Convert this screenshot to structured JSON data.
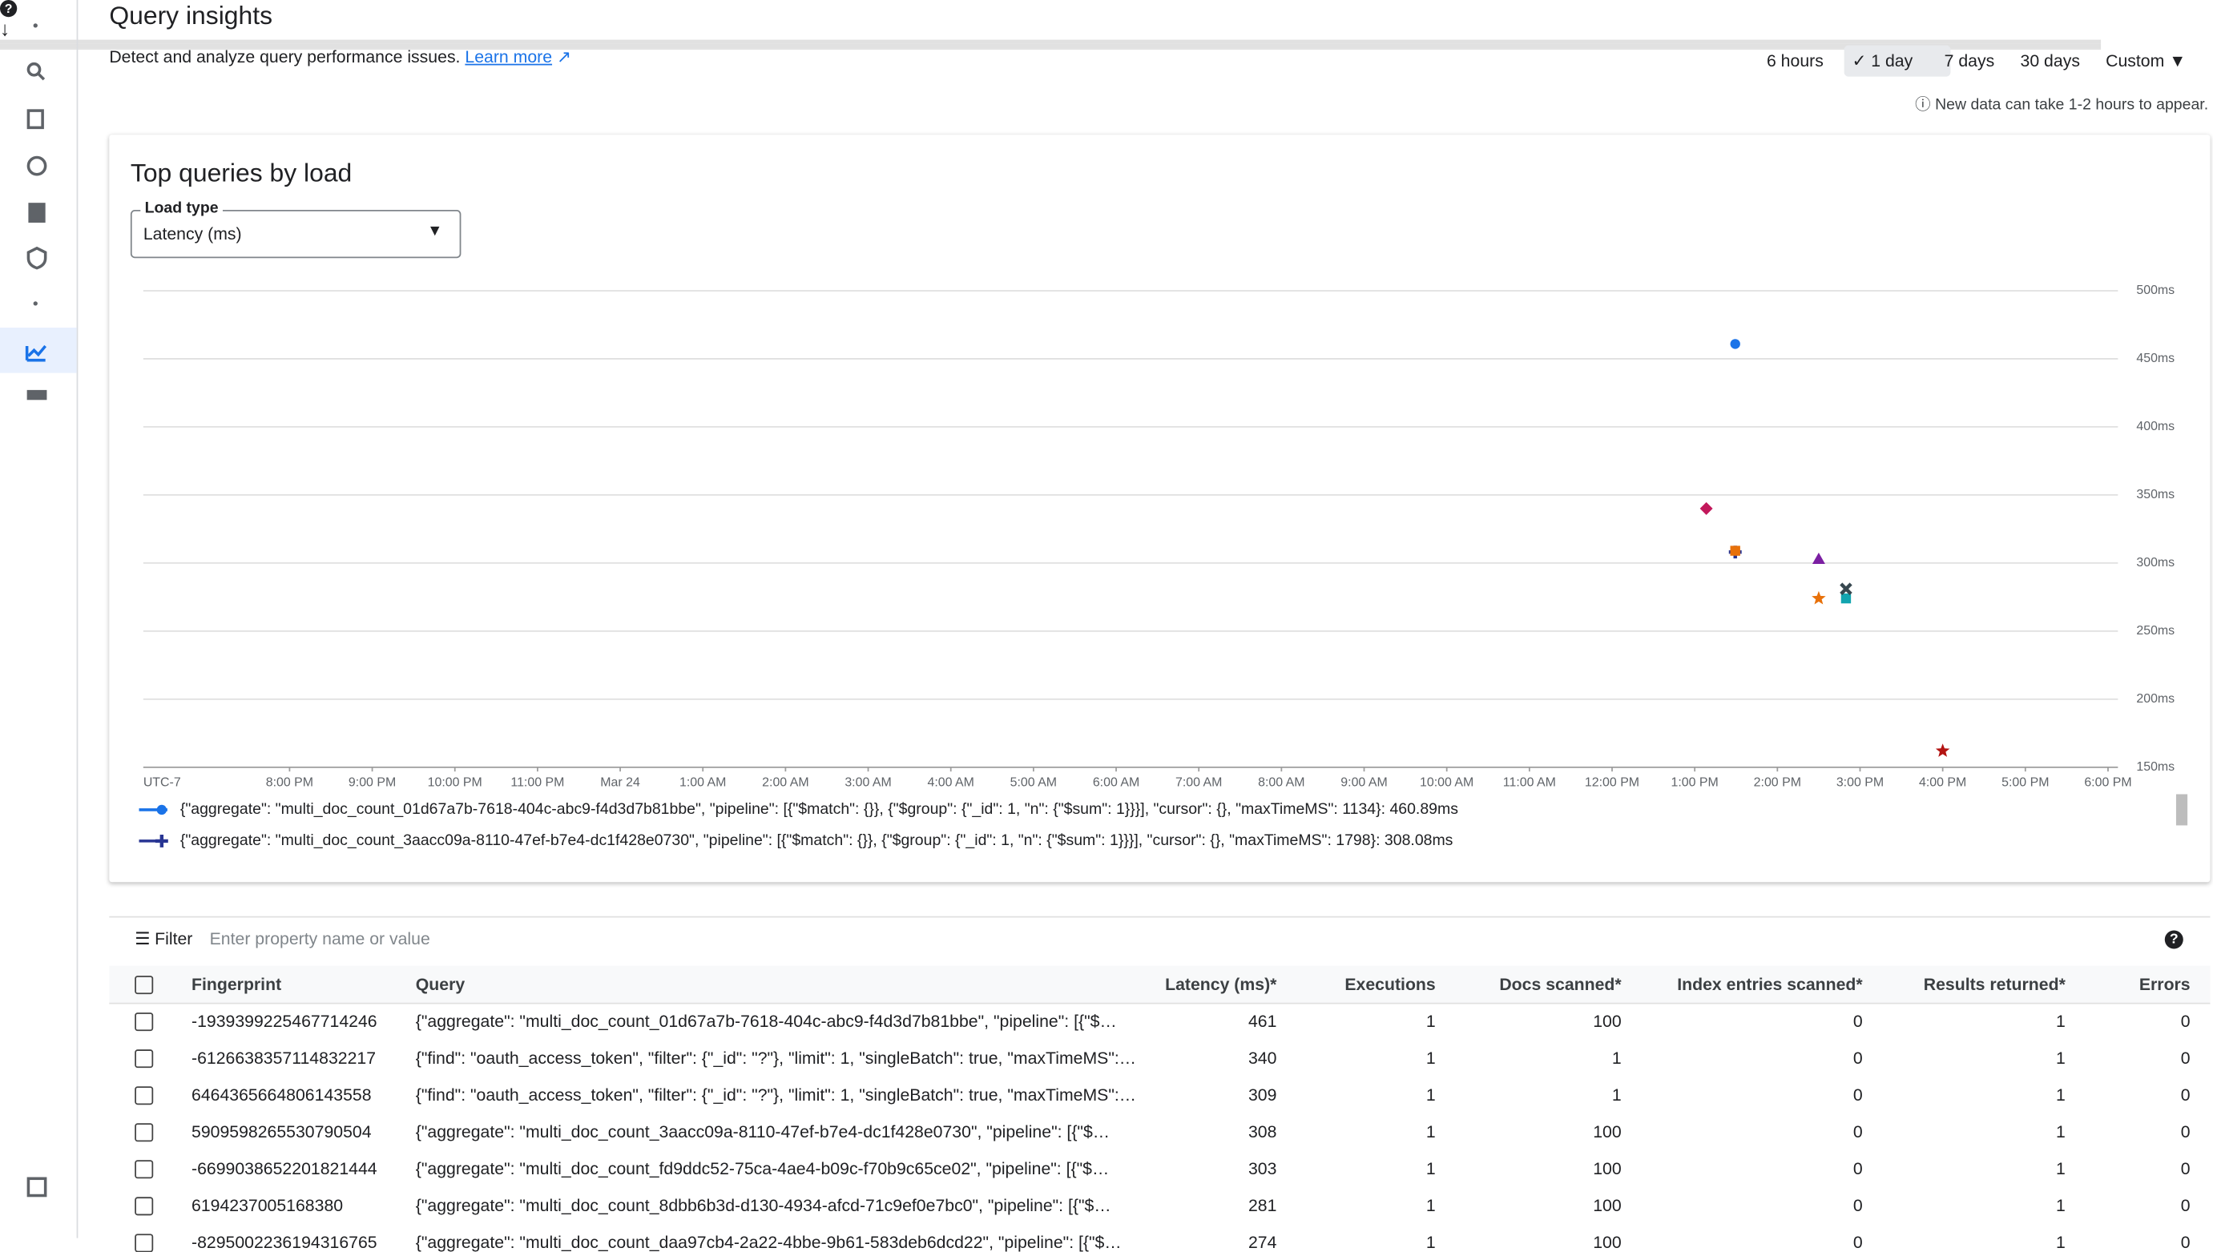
{
  "header": {
    "title": "Query insights",
    "description": "Detect and analyze query performance issues.",
    "learn_more": "Learn more",
    "ranges": [
      "6 hours",
      "1 day",
      "7 days",
      "30 days",
      "Custom"
    ],
    "selected_range": 1,
    "note": "New data can take 1-2 hours to appear."
  },
  "card": {
    "title": "Top queries by load",
    "select_label": "Load type",
    "select_value": "Latency (ms)"
  },
  "chart_data": {
    "type": "scatter",
    "x_axis_label": "UTC-7",
    "xlim": [
      18.23,
      42.12
    ],
    "ylim": [
      150,
      500
    ],
    "grid": true,
    "xticks": [
      {
        "value": 20,
        "label": "8:00 PM"
      },
      {
        "value": 21,
        "label": "9:00 PM"
      },
      {
        "value": 22,
        "label": "10:00 PM"
      },
      {
        "value": 23,
        "label": "11:00 PM"
      },
      {
        "value": 24,
        "label": "Mar 24"
      },
      {
        "value": 25,
        "label": "1:00 AM"
      },
      {
        "value": 26,
        "label": "2:00 AM"
      },
      {
        "value": 27,
        "label": "3:00 AM"
      },
      {
        "value": 28,
        "label": "4:00 AM"
      },
      {
        "value": 29,
        "label": "5:00 AM"
      },
      {
        "value": 30,
        "label": "6:00 AM"
      },
      {
        "value": 31,
        "label": "7:00 AM"
      },
      {
        "value": 32,
        "label": "8:00 AM"
      },
      {
        "value": 33,
        "label": "9:00 AM"
      },
      {
        "value": 34,
        "label": "10:00 AM"
      },
      {
        "value": 35,
        "label": "11:00 AM"
      },
      {
        "value": 36,
        "label": "12:00 PM"
      },
      {
        "value": 37,
        "label": "1:00 PM"
      },
      {
        "value": 38,
        "label": "2:00 PM"
      },
      {
        "value": 39,
        "label": "3:00 PM"
      },
      {
        "value": 40,
        "label": "4:00 PM"
      },
      {
        "value": 41,
        "label": "5:00 PM"
      },
      {
        "value": 42,
        "label": "6:00 PM"
      }
    ],
    "yticks": [
      {
        "value": 150,
        "label": "150ms"
      },
      {
        "value": 200,
        "label": "200ms"
      },
      {
        "value": 250,
        "label": "250ms"
      },
      {
        "value": 300,
        "label": "300ms"
      },
      {
        "value": 350,
        "label": "350ms"
      },
      {
        "value": 400,
        "label": "400ms"
      },
      {
        "value": 450,
        "label": "450ms"
      },
      {
        "value": 500,
        "label": "500ms"
      }
    ],
    "series": [
      {
        "name": "{\"aggregate\": \"multi_doc_count_01d67a7b-7618-404c-abc9-f4d3d7b81bbe\", \"pipeline\": [{\"$match\": {}}, {\"$group\": {\"_id\": 1, \"n\": {\"$sum\": 1}}}], \"cursor\": {}, \"maxTimeMS\": 1134}:",
        "color": "#1a73e8",
        "marker": "circle",
        "x": [
          37.49
        ],
        "values": [
          460.89
        ],
        "value_labels": [
          "460.89ms"
        ]
      },
      {
        "name": "{\"aggregate\": \"multi_doc_count_3aacc09a-8110-47ef-b7e4-dc1f428e0730\", \"pipeline\": [{\"$match\": {}}, {\"$group\": {\"_id\": 1, \"n\": {\"$sum\": 1}}}], \"cursor\": {}, \"maxTimeMS\": 1798}:",
        "color": "#283593",
        "marker": "plus",
        "x": [
          37.49
        ],
        "values": [
          308.08
        ],
        "value_labels": [
          "308.08ms"
        ]
      },
      {
        "color": "#c2185b",
        "marker": "diamond",
        "x": [
          37.14
        ],
        "values": [
          340
        ]
      },
      {
        "color": "#e8710a",
        "marker": "square",
        "x": [
          37.49
        ],
        "values": [
          309
        ]
      },
      {
        "color": "#7b1fa2",
        "marker": "triangle",
        "x": [
          38.5
        ],
        "values": [
          303
        ]
      },
      {
        "color": "#e8710a",
        "marker": "star",
        "x": [
          38.5
        ],
        "values": [
          274
        ]
      },
      {
        "color": "#12a4af",
        "marker": "square",
        "x": [
          38.83
        ],
        "values": [
          274
        ]
      },
      {
        "color": "#37474f",
        "marker": "cross",
        "x": [
          38.83
        ],
        "values": [
          281
        ]
      },
      {
        "color": "#b31412",
        "marker": "star",
        "x": [
          40
        ],
        "values": [
          162
        ]
      }
    ]
  },
  "table": {
    "filter_label": "Filter",
    "filter_placeholder": "Enter property name or value",
    "columns": [
      "Fingerprint",
      "Query",
      "Latency (ms)*",
      "Executions",
      "Docs scanned*",
      "Index entries scanned*",
      "Results returned*",
      "Errors"
    ],
    "rows": [
      [
        "-1939399225467714246",
        "{\"aggregate\": \"multi_doc_count_01d67a7b-7618-404c-abc9-f4d3d7b81bbe\", \"pipeline\": [{\"$…",
        461,
        1,
        100,
        0,
        1,
        0
      ],
      [
        "-6126638357114832217",
        "{\"find\": \"oauth_access_token\", \"filter\": {\"_id\": \"?\"}, \"limit\": 1, \"singleBatch\": true, \"maxTimeMS\":…",
        340,
        1,
        1,
        0,
        1,
        0
      ],
      [
        "6464365664806143558",
        "{\"find\": \"oauth_access_token\", \"filter\": {\"_id\": \"?\"}, \"limit\": 1, \"singleBatch\": true, \"maxTimeMS\":…",
        309,
        1,
        1,
        0,
        1,
        0
      ],
      [
        "5909598265530790504",
        "{\"aggregate\": \"multi_doc_count_3aacc09a-8110-47ef-b7e4-dc1f428e0730\", \"pipeline\": [{\"$…",
        308,
        1,
        100,
        0,
        1,
        0
      ],
      [
        "-6699038652201821444",
        "{\"aggregate\": \"multi_doc_count_fd9ddc52-75ca-4ae4-b09c-f70b9c65ce02\", \"pipeline\": [{\"$…",
        303,
        1,
        100,
        0,
        1,
        0
      ],
      [
        "6194237005168380",
        "{\"aggregate\": \"multi_doc_count_8dbb6b3d-d130-4934-afcd-71c9ef0e7bc0\", \"pipeline\": [{\"$…",
        281,
        1,
        100,
        0,
        1,
        0
      ],
      [
        "-8295002236194316765",
        "{\"aggregate\": \"multi_doc_count_daa97cb4-2a22-4bbe-9b61-583deb6dcd22\", \"pipeline\": [{\"$…",
        274,
        1,
        100,
        0,
        1,
        0
      ]
    ]
  }
}
